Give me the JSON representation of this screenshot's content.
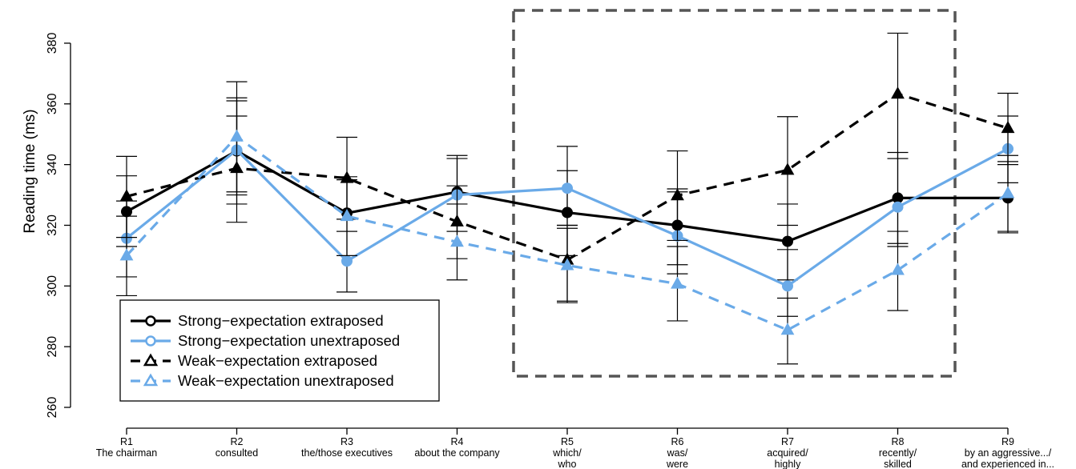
{
  "chart_data": {
    "type": "line",
    "ylabel": "Reading time (ms)",
    "ylim": [
      260,
      380
    ],
    "yticks": [
      260,
      280,
      300,
      320,
      340,
      360,
      380
    ],
    "categories": [
      {
        "line1": "R1",
        "line2": "The chairman",
        "line3": ""
      },
      {
        "line1": "R2",
        "line2": "consulted",
        "line3": ""
      },
      {
        "line1": "R3",
        "line2": "the/those executives",
        "line3": ""
      },
      {
        "line1": "R4",
        "line2": "about the company",
        "line3": ""
      },
      {
        "line1": "R5",
        "line2": "which/",
        "line3": "who"
      },
      {
        "line1": "R6",
        "line2": "was/",
        "line3": "were"
      },
      {
        "line1": "R7",
        "line2": "acquired/",
        "line3": "highly"
      },
      {
        "line1": "R8",
        "line2": "recently/",
        "line3": "skilled"
      },
      {
        "line1": "R9",
        "line2": "by an aggressive.../",
        "line3": "and experienced in..."
      }
    ],
    "series": [
      {
        "name": "Strong−expectation extraposed",
        "color": "#000000",
        "dashed": false,
        "marker": "circle",
        "values": [
          324.5,
          344.5,
          324.0,
          331.0,
          324.2,
          320.0,
          314.7,
          329.0,
          329.0
        ],
        "err_low": [
          313.0,
          330.0,
          318.0,
          318.0,
          310.0,
          307.0,
          302.0,
          314.0,
          318.0
        ],
        "err_high": [
          336.3,
          362.0,
          336.0,
          343.0,
          338.0,
          332.0,
          327.0,
          344.0,
          341.0
        ]
      },
      {
        "name": "Strong−expectation unextraposed",
        "color": "#6aaae8",
        "dashed": false,
        "marker": "circle",
        "values": [
          315.7,
          344.8,
          308.2,
          330.0,
          332.2,
          316.5,
          300.0,
          326.0,
          345.2
        ],
        "err_low": [
          303.0,
          327.0,
          298.0,
          318.0,
          320.0,
          304.0,
          290.0,
          313.0,
          334.0
        ],
        "err_high": [
          328.0,
          361.0,
          318.0,
          342.0,
          346.0,
          331.0,
          312.0,
          342.0,
          356.0
        ]
      },
      {
        "name": "Weak−expectation extraposed",
        "color": "#000000",
        "dashed": true,
        "marker": "triangle",
        "values": [
          329.5,
          338.8,
          335.5,
          321.2,
          308.6,
          329.8,
          338.2,
          363.3,
          352.0
        ],
        "err_low": [
          316.0,
          321.0,
          322.0,
          309.0,
          295.0,
          315.0,
          320.0,
          342.0,
          340.0
        ],
        "err_high": [
          342.7,
          356.0,
          349.0,
          333.0,
          320.0,
          344.5,
          355.8,
          383.3,
          363.5
        ]
      },
      {
        "name": "Weak−expectation unextraposed",
        "color": "#6aaae8",
        "dashed": true,
        "marker": "triangle",
        "values": [
          310.0,
          349.2,
          323.0,
          314.5,
          306.8,
          300.7,
          285.5,
          305.2,
          330.5
        ],
        "err_low": [
          296.8,
          331.0,
          310.0,
          302.0,
          294.5,
          288.5,
          274.3,
          291.9,
          317.5
        ],
        "err_high": [
          323.0,
          367.3,
          335.0,
          327.0,
          319.0,
          313.0,
          296.0,
          318.0,
          343.0
        ]
      }
    ],
    "highlight_box": {
      "x_from": 4.5,
      "x_to": 8.5,
      "y_from": 270,
      "y_to": 390,
      "color": "#555555",
      "dashed": true
    },
    "legend": {
      "position": "bottom-left"
    },
    "grid": false
  }
}
